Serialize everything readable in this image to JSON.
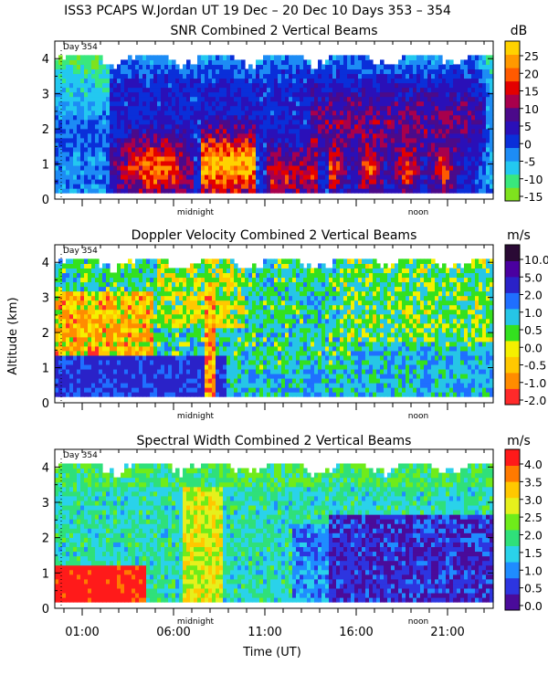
{
  "header": {
    "title": "ISS3 PCAPS W.Jordan UT  19 Dec – 20 Dec 10 Days 353 – 354"
  },
  "shared_axes": {
    "ylabel": "Altitude (km)",
    "xlabel": "Time (UT)",
    "y_ticks": [
      "0",
      "1",
      "2",
      "3",
      "4"
    ],
    "x_ticks": [
      "01:00",
      "06:00",
      "11:00",
      "16:00",
      "21:00"
    ],
    "day_marker": "Day 354",
    "midnight_label": "midnight",
    "noon_label": "noon"
  },
  "colors": {
    "snr": [
      "#7fe21e",
      "#39e87d",
      "#23c8f0",
      "#1d8cf5",
      "#0a2fd9",
      "#2a10b8",
      "#4b0a8a",
      "#a8004c",
      "#e30000",
      "#ff5a00",
      "#ff9900",
      "#ffd200"
    ],
    "vel": [
      "#ff2a2a",
      "#ff8c00",
      "#ffc800",
      "#f5f000",
      "#33e11f",
      "#26c6e6",
      "#1f6fff",
      "#2a22c8",
      "#4a00a0",
      "#2a0a35"
    ],
    "width": [
      "#4a0b9a",
      "#2d35e0",
      "#1f8cff",
      "#2ad2ea",
      "#2fe07a",
      "#6fec1a",
      "#e6f01c",
      "#ffc800",
      "#ff7a00",
      "#ff1a1a"
    ]
  },
  "chart_data": [
    {
      "type": "heatmap",
      "title": "SNR Combined 2 Vertical Beams",
      "unit": "dB",
      "ylabel": "Altitude (km)",
      "x_range_hours": [
        -0.5,
        23.5
      ],
      "y_range_km": [
        0,
        4.5
      ],
      "colorbar_ticks": [
        "25",
        "20",
        "15",
        "10",
        "5",
        "0",
        "-5",
        "-10",
        "-15"
      ],
      "colorbar_range": [
        -18,
        30
      ],
      "grid": false
    },
    {
      "type": "heatmap",
      "title": "Doppler Velocity Combined 2 Vertical Beams",
      "unit": "m/s",
      "ylabel": "Altitude (km)",
      "x_range_hours": [
        -0.5,
        23.5
      ],
      "y_range_km": [
        0,
        4.5
      ],
      "colorbar_ticks": [
        "10.0",
        "5.0",
        "2.0",
        "1.0",
        "0.5",
        "0.0",
        "-0.5",
        "-1.0",
        "-2.0"
      ],
      "grid": false
    },
    {
      "type": "heatmap",
      "title": "Spectral Width Combined 2 Vertical Beams",
      "unit": "m/s",
      "xlabel": "Time (UT)",
      "ylabel": "Altitude (km)",
      "x_range_hours": [
        -0.5,
        23.5
      ],
      "y_range_km": [
        0,
        4.5
      ],
      "colorbar_ticks": [
        "4.0",
        "3.5",
        "3.0",
        "2.5",
        "2.0",
        "1.5",
        "1.0",
        "0.5",
        "0.0"
      ],
      "colorbar_range": [
        0,
        4.5
      ],
      "grid": false
    }
  ]
}
